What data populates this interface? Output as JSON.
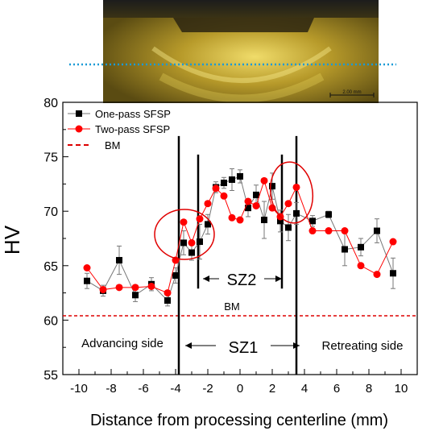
{
  "micrograph": {
    "scale_bar_label": "2.00 mm"
  },
  "colors": {
    "one_pass": "#000000",
    "one_pass_line": "#777777",
    "two_pass": "#ff0000",
    "bm_line": "#dd0000",
    "overlay_dotted": "#1a9ad6"
  },
  "chart_data": {
    "type": "scatter",
    "xlabel": "Distance from processing centerline (mm)",
    "ylabel": "HV",
    "xlim": [
      -11,
      11
    ],
    "ylim": [
      55,
      80
    ],
    "xticks": [
      -10,
      -8,
      -6,
      -4,
      -2,
      0,
      2,
      4,
      6,
      8,
      10
    ],
    "yticks": [
      55,
      60,
      65,
      70,
      75,
      80
    ],
    "legend_position": "top-left",
    "series": [
      {
        "name": "One-pass SFSP",
        "marker": "square",
        "x": [
          -9.5,
          -8.5,
          -7.5,
          -6.5,
          -5.5,
          -4.5,
          -4.0,
          -3.5,
          -3.0,
          -2.5,
          -2.0,
          -1.5,
          -1.0,
          -0.5,
          0.0,
          0.5,
          1.0,
          1.5,
          2.0,
          2.5,
          3.0,
          3.5,
          4.5,
          5.5,
          6.5,
          7.5,
          8.5,
          9.5
        ],
        "values": [
          63.6,
          62.7,
          65.5,
          62.3,
          63.3,
          61.8,
          64.1,
          67.1,
          66.2,
          67.2,
          68.8,
          72.2,
          72.6,
          72.9,
          73.2,
          70.3,
          71.5,
          69.2,
          72.3,
          69.1,
          68.5,
          69.8,
          69.1,
          69.7,
          66.5,
          66.7,
          68.2,
          64.3
        ],
        "errors": [
          0.7,
          0.5,
          1.3,
          0.6,
          0.6,
          0.5,
          0.7,
          1.1,
          0.7,
          1.6,
          0.9,
          0.5,
          0.5,
          1.0,
          0.6,
          0.8,
          0.9,
          1.7,
          1.2,
          1.0,
          1.2,
          1.0,
          0.5,
          0.3,
          1.5,
          0.8,
          1.1,
          1.4
        ]
      },
      {
        "name": "Two-pass SFSP",
        "marker": "circle",
        "x": [
          -9.5,
          -8.5,
          -7.5,
          -6.5,
          -5.5,
          -4.5,
          -4.0,
          -3.5,
          -3.0,
          -2.5,
          -2.0,
          -1.5,
          -1.0,
          -0.5,
          0.0,
          0.5,
          1.0,
          1.5,
          2.0,
          2.5,
          3.0,
          3.5,
          4.5,
          5.5,
          6.5,
          7.5,
          8.5,
          9.5
        ],
        "values": [
          64.8,
          62.8,
          63.0,
          63.0,
          63.1,
          62.5,
          65.5,
          69.0,
          67.1,
          69.3,
          70.7,
          72.1,
          71.4,
          69.4,
          69.2,
          70.9,
          70.5,
          72.8,
          70.3,
          69.5,
          70.7,
          72.2,
          68.2,
          68.2,
          68.2,
          65.0,
          64.2,
          67.2
        ]
      },
      {
        "name": "BM",
        "style": "dashed",
        "value": 60.4
      }
    ],
    "zone_lines_x": [
      -3.8,
      -2.6,
      2.6,
      3.5
    ],
    "annotations": {
      "sz1": "SZ1",
      "sz2": "SZ2",
      "bm": "BM",
      "advancing": "Advancing side",
      "retreating": "Retreating side"
    }
  }
}
